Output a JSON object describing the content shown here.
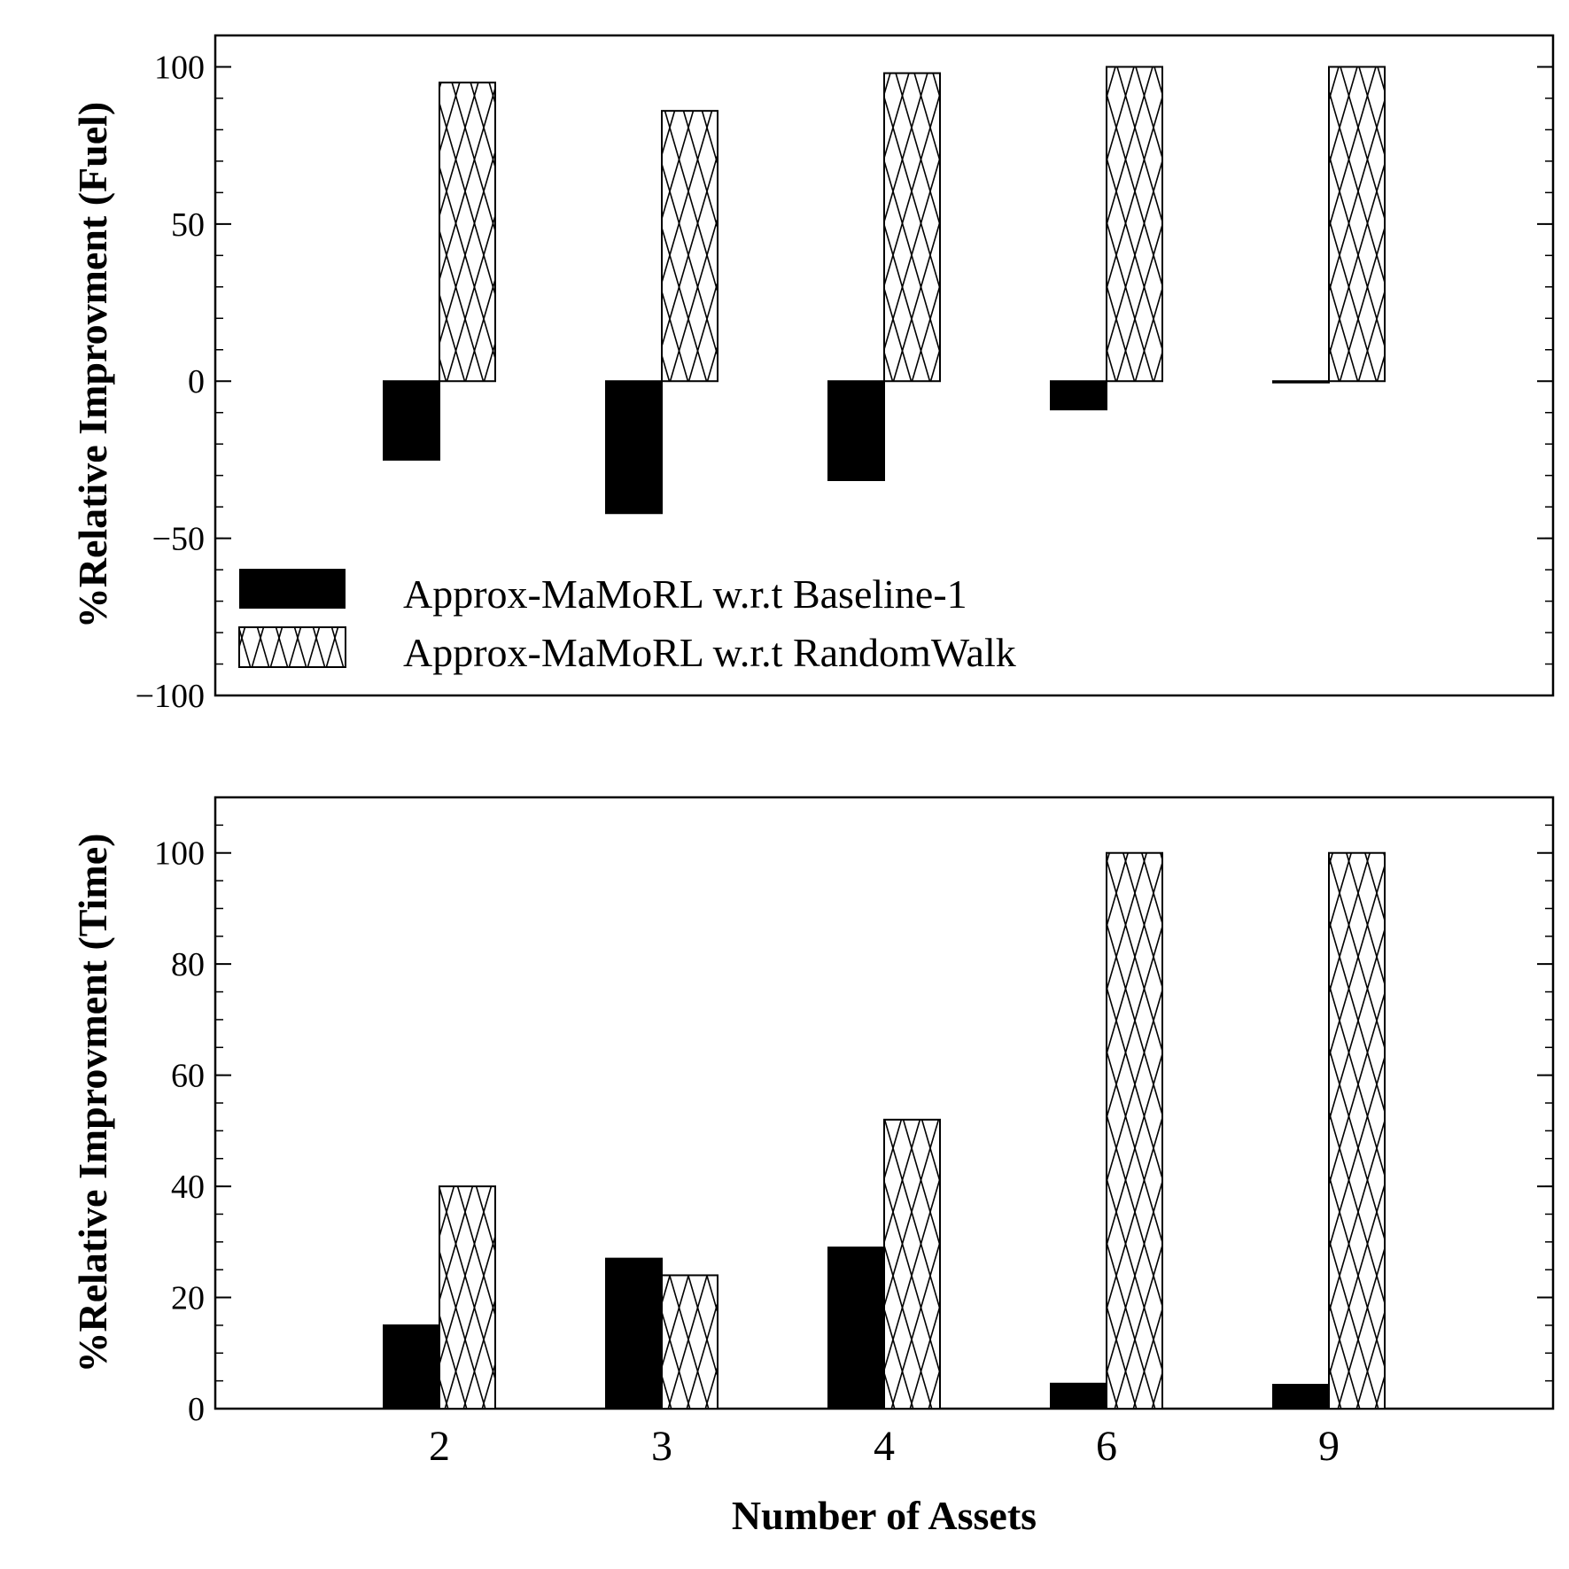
{
  "chart_data": [
    {
      "type": "bar",
      "categories": [
        "2",
        "3",
        "4",
        "6",
        "9"
      ],
      "ylabel": "%Relative Improvment (Fuel)",
      "ylim": [
        -100,
        110
      ],
      "yticks": [
        -100,
        -50,
        0,
        50,
        100
      ],
      "ytick_labels": [
        "−100",
        "−50",
        "0",
        "50",
        "100"
      ],
      "series": [
        {
          "name": "Approx-MaMoRL w.r.t Baseline-1",
          "fill": "solid",
          "color": "#000000",
          "values": [
            -25,
            -42,
            -31.5,
            -9,
            0
          ]
        },
        {
          "name": "Approx-MaMoRL w.r.t RandomWalk",
          "fill": "crosshatch",
          "color": "#000000",
          "values": [
            95,
            86,
            98,
            100,
            100
          ]
        }
      ],
      "legend": "bottom-left",
      "grid": false
    },
    {
      "type": "bar",
      "categories": [
        "2",
        "3",
        "4",
        "6",
        "9"
      ],
      "xlabel": "Number of Assets",
      "ylabel": "%Relative Improvment (Time)",
      "ylim": [
        0,
        110
      ],
      "yticks": [
        0,
        20,
        40,
        60,
        80,
        100
      ],
      "ytick_labels": [
        "0",
        "20",
        "40",
        "60",
        "80",
        "100"
      ],
      "series": [
        {
          "name": "Approx-MaMoRL w.r.t Baseline-1",
          "fill": "solid",
          "color": "#000000",
          "values": [
            15,
            27,
            29,
            4.5,
            4.3
          ]
        },
        {
          "name": "Approx-MaMoRL w.r.t RandomWalk",
          "fill": "crosshatch",
          "color": "#000000",
          "values": [
            40,
            24,
            52,
            100,
            100
          ]
        }
      ],
      "grid": false
    }
  ]
}
